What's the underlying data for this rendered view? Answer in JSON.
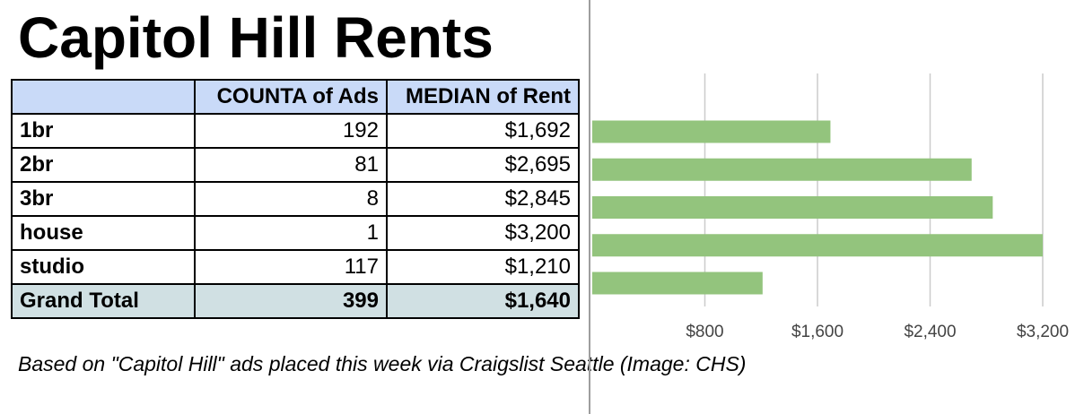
{
  "title": "Capitol Hill Rents",
  "table": {
    "headers": [
      "",
      "COUNTA of Ads",
      "MEDIAN of Rent"
    ],
    "rows": [
      {
        "type": "1br",
        "ads": "192",
        "rent": "$1,692"
      },
      {
        "type": "2br",
        "ads": "81",
        "rent": "$2,695"
      },
      {
        "type": "3br",
        "ads": "8",
        "rent": "$2,845"
      },
      {
        "type": "house",
        "ads": "1",
        "rent": "$3,200"
      },
      {
        "type": "studio",
        "ads": "117",
        "rent": "$1,210"
      }
    ],
    "total": {
      "label": "Grand Total",
      "ads": "399",
      "rent": "$1,640"
    }
  },
  "caption": "Based on \"Capitol Hill\" ads placed this week via Craigslist Seattle (Image: CHS)",
  "chart_data": {
    "type": "bar",
    "orientation": "horizontal",
    "categories": [
      "1br",
      "2br",
      "3br",
      "house",
      "studio"
    ],
    "values": [
      1692,
      2695,
      2845,
      3200,
      1210
    ],
    "xlim": [
      0,
      3200
    ],
    "xticks": [
      800,
      1600,
      2400,
      3200
    ],
    "xtick_labels": [
      "$800",
      "$1,600",
      "$2,400",
      "$3,200"
    ],
    "grid": true,
    "bar_color": "#93c47d",
    "grid_color": "#cccccc"
  }
}
